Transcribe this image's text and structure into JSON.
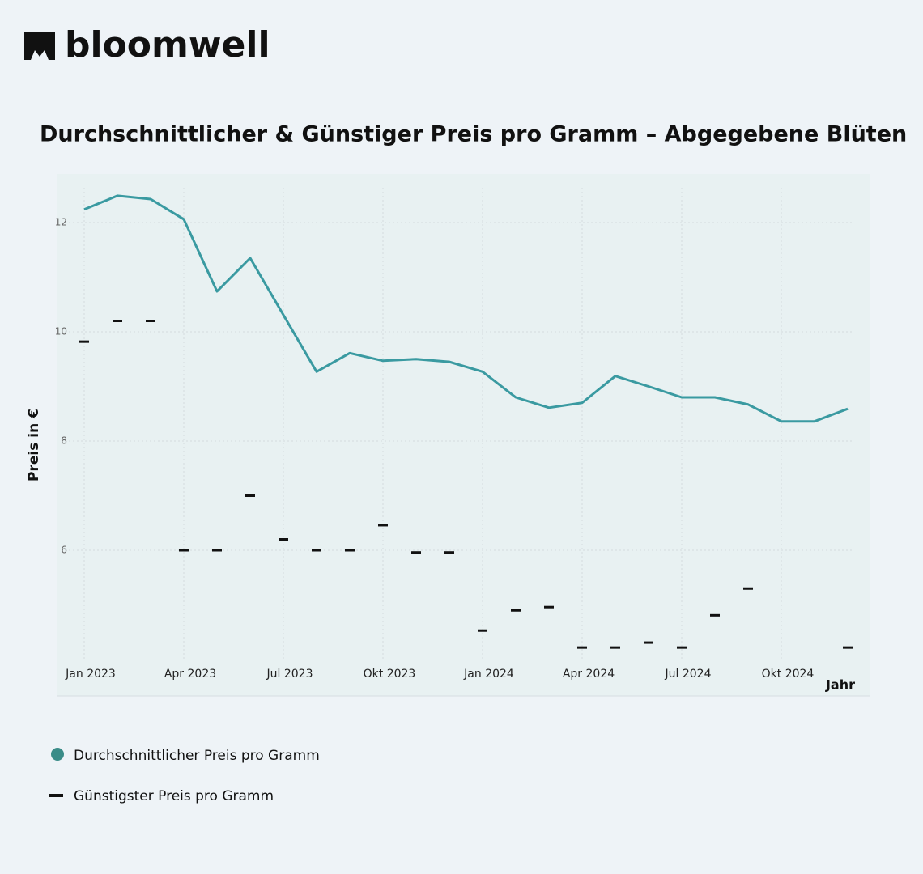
{
  "brand": "bloomwell",
  "chart_data": {
    "type": "line",
    "title": "Durchschnittlicher & Günstiger Preis pro Gramm – Abgegebene Blüten",
    "y_label": "Preis in €",
    "x_label": "Jahr",
    "categories": [
      "Jan 2023",
      null,
      null,
      "Apr 2023",
      null,
      null,
      "Jul 2023",
      null,
      null,
      "Okt 2023",
      null,
      null,
      "Jan 2024",
      null,
      null,
      "Apr 2024",
      null,
      null,
      "Jul 2024",
      null,
      null,
      "Okt 2024",
      null,
      null
    ],
    "series": [
      {
        "name": "Durchschnittlicher Preis pro Gramm",
        "color": "#3a9aa1",
        "marker": "line",
        "values": [
          12.24,
          12.49,
          12.43,
          12.06,
          10.74,
          11.35,
          10.31,
          9.27,
          9.61,
          9.47,
          9.5,
          9.45,
          9.27,
          8.8,
          8.61,
          8.7,
          9.19,
          9.0,
          8.8,
          8.8,
          8.67,
          8.36,
          8.36,
          8.59
        ]
      },
      {
        "name": "Günstigster Preis pro Gramm",
        "color": "#111111",
        "marker": "dash",
        "values": [
          9.82,
          10.2,
          10.2,
          6.0,
          6.0,
          7.0,
          6.2,
          6.0,
          6.0,
          6.46,
          5.96,
          5.96,
          4.53,
          4.9,
          4.96,
          4.22,
          4.22,
          4.31,
          4.22,
          4.81,
          5.3,
          null,
          null,
          4.22
        ]
      }
    ],
    "ylim": [
      4.0,
      12.8
    ],
    "yticks": [
      6,
      8,
      10,
      12
    ],
    "grid": true
  }
}
